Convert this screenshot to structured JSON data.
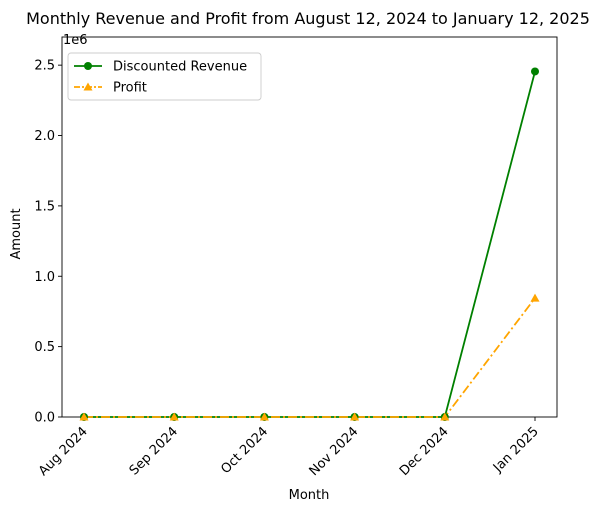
{
  "chart_data": {
    "type": "line",
    "title": "Monthly Revenue and Profit from August 12, 2024 to January 12, 2025",
    "xlabel": "Month",
    "ylabel": "Amount",
    "y_offset_label": "1e6",
    "categories": [
      "Aug 2024",
      "Sep 2024",
      "Oct 2024",
      "Nov 2024",
      "Dec 2024",
      "Jan 2025"
    ],
    "series": [
      {
        "name": "Discounted Revenue",
        "values": [
          0,
          0,
          0,
          0,
          0,
          2455000
        ],
        "color": "#008000",
        "marker": "circle",
        "line_style": "solid"
      },
      {
        "name": "Profit",
        "values": [
          0,
          0,
          0,
          0,
          0,
          845000
        ],
        "color": "#FFA500",
        "marker": "triangle",
        "line_style": "dash-dot"
      }
    ],
    "yticks": [
      0,
      500000,
      1000000,
      1500000,
      2000000,
      2500000
    ],
    "ytick_labels": [
      "0.0",
      "0.5",
      "1.0",
      "1.5",
      "2.0",
      "2.5"
    ],
    "ylim": [
      0,
      2700000
    ],
    "grid": false,
    "legend_position": "upper-left"
  }
}
